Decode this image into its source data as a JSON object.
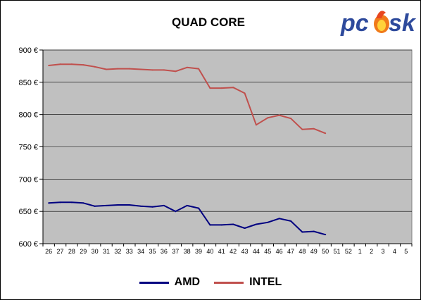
{
  "chart_data": {
    "type": "line",
    "title": "QUAD CORE",
    "categories": [
      "26",
      "27",
      "28",
      "29",
      "30",
      "31",
      "32",
      "33",
      "34",
      "35",
      "36",
      "37",
      "38",
      "39",
      "40",
      "41",
      "42",
      "43",
      "44",
      "45",
      "46",
      "47",
      "48",
      "49",
      "50",
      "51",
      "52",
      "1",
      "2",
      "3",
      "4",
      "5"
    ],
    "y_tick_labels": [
      "600 €",
      "650 €",
      "700 €",
      "750 €",
      "800 €",
      "850 €",
      "900 €"
    ],
    "ylim": [
      600,
      900
    ],
    "grid": true,
    "legend": "bottom",
    "series": [
      {
        "name": "AMD",
        "color": "#000080",
        "values": [
          663,
          664,
          664,
          663,
          658,
          659,
          660,
          660,
          658,
          657,
          659,
          650,
          659,
          655,
          629,
          629,
          630,
          624,
          630,
          633,
          639,
          635,
          618,
          619,
          614,
          null,
          null,
          null,
          null,
          null,
          null,
          null
        ]
      },
      {
        "name": "INTEL",
        "color": "#C0504D",
        "values": [
          876,
          878,
          878,
          877,
          874,
          870,
          871,
          871,
          870,
          869,
          869,
          867,
          873,
          871,
          841,
          841,
          842,
          833,
          784,
          795,
          799,
          794,
          777,
          778,
          771,
          null,
          null,
          null,
          null,
          null,
          null,
          null
        ]
      }
    ]
  },
  "logo": {
    "text_part1": "pc",
    "text_part2": "sk"
  }
}
